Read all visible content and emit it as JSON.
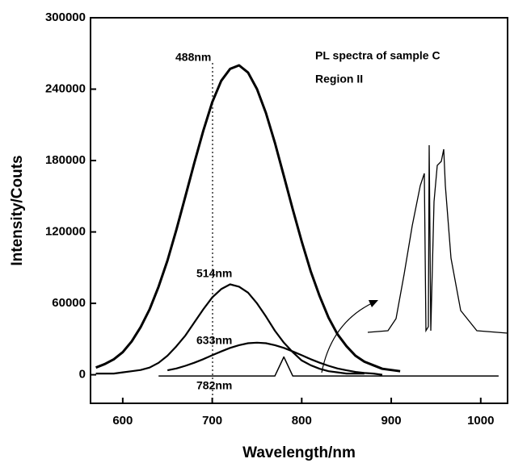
{
  "chart_data": {
    "type": "line",
    "annotations": [
      "PL spectra of sample C",
      "Region II"
    ],
    "xlabel": "Wavelength/nm",
    "ylabel": "Intensity/Couts",
    "x": [
      570,
      580,
      590,
      600,
      610,
      620,
      630,
      640,
      650,
      660,
      670,
      680,
      690,
      700,
      710,
      720,
      730,
      740,
      750,
      760,
      770,
      780,
      790,
      800,
      810,
      820,
      830,
      840,
      850,
      860,
      870,
      880,
      890,
      900,
      910,
      920,
      930,
      940,
      950,
      960,
      970,
      980,
      990,
      1000,
      1010,
      1020
    ],
    "series": [
      {
        "name": "488nm",
        "color": "#000000",
        "values": [
          6000,
          9000,
          13000,
          19000,
          28000,
          40000,
          55000,
          74000,
          96000,
          122000,
          150000,
          178000,
          205000,
          229000,
          247000,
          257000,
          260000,
          254000,
          240000,
          220000,
          195000,
          167000,
          139000,
          112000,
          87000,
          66000,
          48000,
          34000,
          24000,
          16000,
          11000,
          8000,
          5000,
          4000,
          3000,
          null,
          null,
          null,
          null,
          null,
          null,
          null,
          null,
          null,
          null,
          null
        ]
      },
      {
        "name": "514nm",
        "color": "#000000",
        "values": [
          1000,
          1000,
          1000,
          2000,
          3000,
          4000,
          6000,
          10000,
          16000,
          24000,
          33000,
          44000,
          55000,
          65000,
          72000,
          76000,
          74000,
          69000,
          60000,
          49000,
          37000,
          27000,
          19000,
          12000,
          8000,
          5000,
          3000,
          2000,
          1000,
          1000,
          1000,
          null,
          null,
          null,
          null,
          null,
          null,
          null,
          null,
          null,
          null,
          null,
          null,
          null,
          null,
          null
        ]
      },
      {
        "name": "633nm",
        "color": "#000000",
        "values": [
          null,
          null,
          null,
          null,
          null,
          null,
          null,
          null,
          3700,
          5300,
          7500,
          10100,
          13100,
          16400,
          19600,
          22600,
          24900,
          26500,
          27000,
          26500,
          24900,
          22600,
          19600,
          16400,
          13100,
          10100,
          7500,
          5300,
          3700,
          2400,
          1500,
          1000,
          0,
          null,
          null,
          null,
          null,
          null,
          null,
          null,
          null,
          null,
          null,
          null,
          null,
          null
        ]
      },
      {
        "name": "782nm",
        "color": "#000000",
        "values": [
          null,
          null,
          null,
          null,
          null,
          null,
          null,
          -1000,
          -1000,
          -1000,
          -1000,
          -1000,
          -1000,
          -1000,
          -1000,
          -1000,
          -1000,
          -1000,
          -1000,
          -1000,
          -1000,
          15000,
          -1000,
          -1000,
          -1000,
          -1000,
          -1000,
          -1000,
          -1000,
          -1000,
          -1000,
          -1000,
          -1000,
          -1000,
          -1000,
          -1000,
          -1000,
          -1000,
          -1000,
          -1000,
          -1000,
          -1000,
          -1000,
          -1000,
          -1000,
          -1000
        ]
      }
    ],
    "xlim": [
      564,
      1030
    ],
    "xticks": [
      600,
      700,
      800,
      900,
      1000
    ],
    "ylim": [
      -24000,
      300000
    ],
    "yticks": [
      0,
      60000,
      120000,
      180000,
      240000,
      300000
    ]
  }
}
